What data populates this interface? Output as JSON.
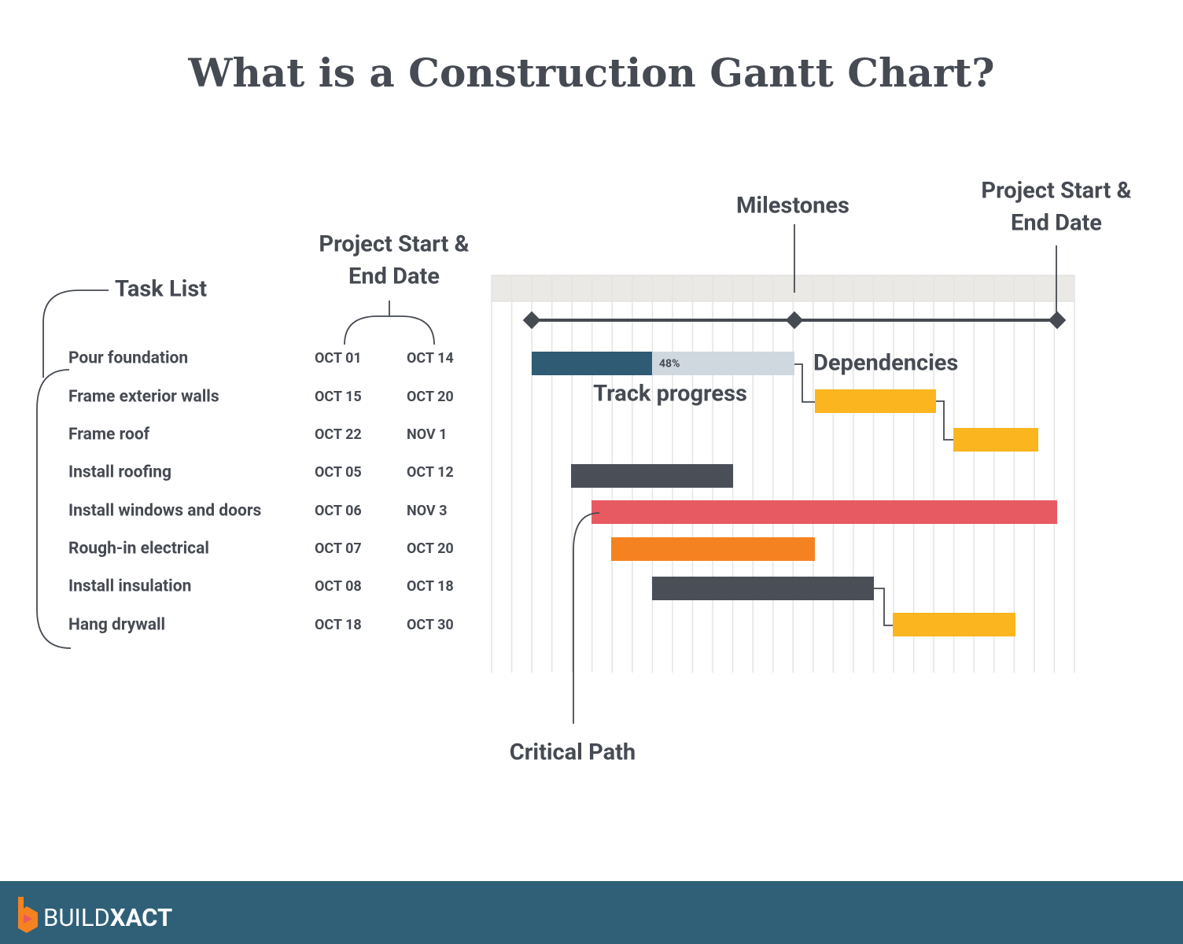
{
  "header": {
    "title": "What is a Construction Gantt Chart?"
  },
  "annotations": {
    "task_list": "Task List",
    "project_dates_left": [
      "Project Start &",
      "End Date"
    ],
    "milestones": "Milestones",
    "project_dates_right": [
      "Project Start &",
      "End Date"
    ],
    "dependencies": "Dependencies",
    "track_progress": "Track progress",
    "critical_path": "Critical Path"
  },
  "tasks": [
    {
      "name": "Pour foundation",
      "start": "OCT 01",
      "end": "OCT 14"
    },
    {
      "name": "Frame exterior walls",
      "start": "OCT 15",
      "end": "OCT 20"
    },
    {
      "name": "Frame roof",
      "start": "OCT 22",
      "end": "NOV 1"
    },
    {
      "name": "Install roofing",
      "start": "OCT 05",
      "end": "OCT 12"
    },
    {
      "name": "Install windows and doors",
      "start": "OCT 06",
      "end": "NOV 3"
    },
    {
      "name": "Rough-in electrical",
      "start": "OCT 07",
      "end": "OCT 20"
    },
    {
      "name": "Install insulation",
      "start": "OCT 08",
      "end": "OCT 18"
    },
    {
      "name": "Hang drywall",
      "start": "OCT 18",
      "end": "OCT 30"
    }
  ],
  "progress_label": "48%",
  "footer": {
    "brand_light": "BUILD",
    "brand_bold": "XACT"
  }
}
